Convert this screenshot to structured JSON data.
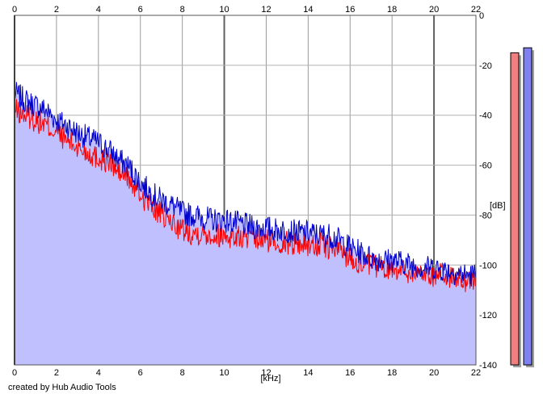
{
  "credit": "created by Hub Audio Tools",
  "chart_data": {
    "type": "line",
    "xlabel": "[kHz]",
    "ylabel": "[dB]",
    "xlim": [
      0,
      22
    ],
    "ylim": [
      -140,
      0
    ],
    "xticks": [
      0,
      2,
      4,
      6,
      8,
      10,
      12,
      14,
      16,
      18,
      20,
      22
    ],
    "yticks": [
      0,
      -20,
      -40,
      -60,
      -80,
      -100,
      -120,
      -140
    ],
    "grid": true,
    "fill_color": "#c0c0ff",
    "series": [
      {
        "color": "#0000cc",
        "x": [
          0,
          0.5,
          1,
          1.5,
          2,
          2.5,
          3,
          3.5,
          4,
          4.5,
          5,
          5.5,
          6,
          6.5,
          7,
          7.5,
          8,
          8.5,
          9,
          9.5,
          10,
          10.5,
          11,
          11.5,
          12,
          12.5,
          13,
          13.5,
          14,
          14.5,
          15,
          15.5,
          16,
          16.5,
          17,
          17.5,
          18,
          18.5,
          19,
          19.5,
          20,
          20.5,
          21,
          21.5,
          22
        ],
        "values": [
          -31,
          -34,
          -36,
          -38,
          -42,
          -44,
          -47,
          -49,
          -51,
          -54,
          -58,
          -61,
          -67,
          -71,
          -74,
          -76,
          -79,
          -80,
          -81,
          -82,
          -82,
          -83,
          -84,
          -85,
          -85,
          -86,
          -86,
          -87,
          -87,
          -88,
          -88,
          -90,
          -93,
          -95,
          -97,
          -98,
          -98,
          -99,
          -100,
          -101,
          -101,
          -102,
          -103,
          -104,
          -104
        ]
      },
      {
        "color": "#ff0000",
        "x": [
          0,
          0.5,
          1,
          1.5,
          2,
          2.5,
          3,
          3.5,
          4,
          4.5,
          5,
          5.5,
          6,
          6.5,
          7,
          7.5,
          8,
          8.5,
          9,
          9.5,
          10,
          10.5,
          11,
          11.5,
          12,
          12.5,
          13,
          13.5,
          14,
          14.5,
          15,
          15.5,
          16,
          16.5,
          17,
          17.5,
          18,
          18.5,
          19,
          19.5,
          20,
          20.5,
          21,
          21.5,
          22
        ],
        "values": [
          -38,
          -40,
          -42,
          -44,
          -47,
          -50,
          -53,
          -55,
          -57,
          -59,
          -63,
          -66,
          -72,
          -76,
          -80,
          -83,
          -86,
          -87,
          -87,
          -88,
          -88,
          -89,
          -89,
          -90,
          -90,
          -91,
          -91,
          -91,
          -92,
          -92,
          -93,
          -94,
          -97,
          -99,
          -100,
          -101,
          -101,
          -102,
          -103,
          -103,
          -104,
          -104,
          -105,
          -106,
          -106
        ]
      }
    ]
  },
  "meters": [
    {
      "color": "#f08080",
      "level_db": -4
    },
    {
      "color": "#8080f0",
      "level_db": -2
    }
  ]
}
